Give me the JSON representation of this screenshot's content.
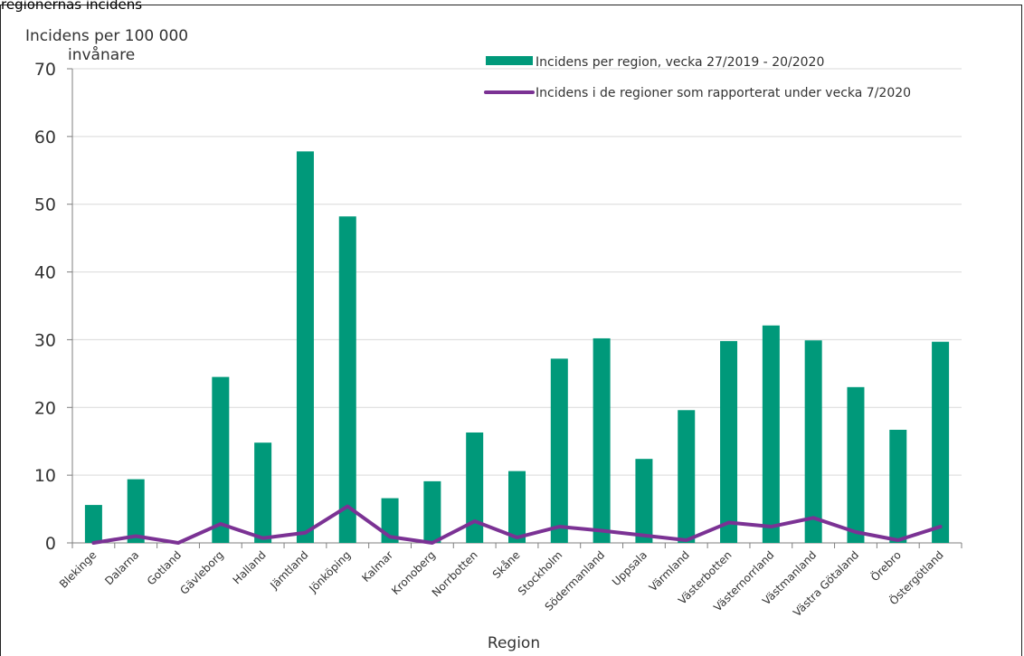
{
  "header_fragment": "regionernas incidens",
  "colors": {
    "bar": "#00997a",
    "line": "#7b3294",
    "grid": "#d9d9d9",
    "axis": "#7f7f7f"
  },
  "chart_data": {
    "type": "bar",
    "ylabel_line1": "Incidens per 100 000",
    "ylabel_line2": "invånare",
    "xlabel": "Region",
    "ylim": [
      0,
      70
    ],
    "yticks": [
      0,
      10,
      20,
      30,
      40,
      50,
      60,
      70
    ],
    "grid": true,
    "legend_position": "top-right",
    "categories": [
      "Blekinge",
      "Dalarna",
      "Gotland",
      "Gävleborg",
      "Halland",
      "Jämtland",
      "Jönköping",
      "Kalmar",
      "Kronoberg",
      "Norrbotten",
      "Skåne",
      "Stockholm",
      "Södermanland",
      "Uppsala",
      "Värmland",
      "Västerbotten",
      "Västernorrland",
      "Västmanland",
      "Västra Götaland",
      "Örebro",
      "Östergötland"
    ],
    "series": [
      {
        "name": "Incidens per region, vecka 27/2019 - 20/2020",
        "type": "bar",
        "values": [
          5.6,
          9.4,
          0,
          24.5,
          14.8,
          57.8,
          48.2,
          6.6,
          9.1,
          16.3,
          10.6,
          27.2,
          30.2,
          12.4,
          19.6,
          29.8,
          32.1,
          29.9,
          23.0,
          16.7,
          29.7
        ]
      },
      {
        "name": "Incidens i de regioner som rapporterat under vecka 7/2020",
        "type": "line",
        "values": [
          0,
          1.0,
          0,
          2.8,
          0.7,
          1.5,
          5.4,
          0.9,
          0,
          3.2,
          0.8,
          2.4,
          1.8,
          1.1,
          0.4,
          3.0,
          2.4,
          3.7,
          1.6,
          0.4,
          2.4
        ]
      }
    ]
  }
}
